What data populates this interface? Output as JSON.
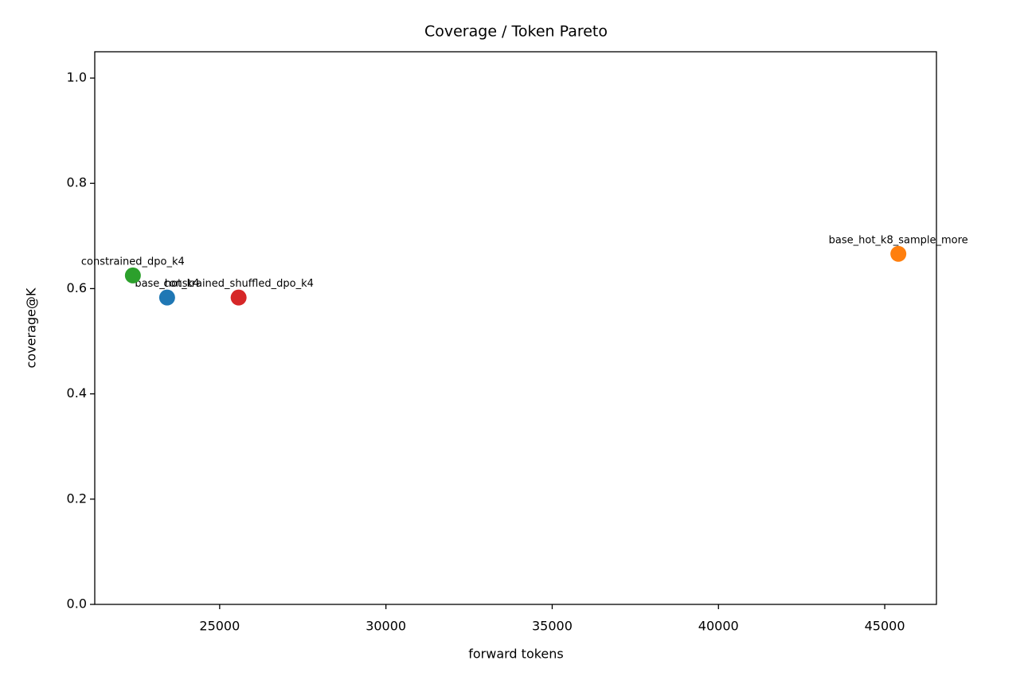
{
  "chart_data": {
    "type": "scatter",
    "title": "Coverage / Token Pareto",
    "x_label": "forward tokens",
    "y_label": "coverage@K",
    "xlim": [
      21244,
      46555
    ],
    "ylim": [
      0,
      1.05
    ],
    "xticks": [
      25000,
      30000,
      35000,
      40000,
      45000
    ],
    "yticks": [
      {
        "value": 0,
        "label": "0.0"
      },
      {
        "value": 0.2,
        "label": "0.2"
      },
      {
        "value": 0.4,
        "label": "0.4"
      },
      {
        "value": 0.6,
        "label": "0.6"
      },
      {
        "value": 0.8,
        "label": "0.8"
      },
      {
        "value": 1,
        "label": "1.0"
      }
    ],
    "series": [
      {
        "name": "base_hot_k4",
        "color": "#1f77b4",
        "x": [
          23420
        ],
        "values": [
          0.583
        ]
      },
      {
        "name": "base_hot_k8_sample_more",
        "color": "#ff7f0e",
        "x": [
          45410
        ],
        "values": [
          0.666
        ]
      },
      {
        "name": "constrained_dpo_k4",
        "color": "#2ca02c",
        "x": [
          22390
        ],
        "values": [
          0.625
        ]
      },
      {
        "name": "constrained_shuffled_dpo_k4",
        "color": "#d62728",
        "x": [
          25570
        ],
        "values": [
          0.583
        ]
      }
    ]
  }
}
